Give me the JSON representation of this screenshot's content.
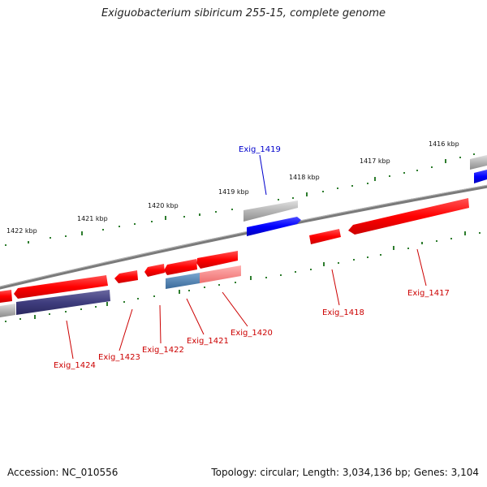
{
  "title": "Exiguobacterium sibiricum 255-15, complete genome",
  "accession": "Accession: NC_010556",
  "topology": "Topology: circular; Length: 3,034,136 bp; Genes: 3,104",
  "colors": {
    "backbone": "#808080",
    "forward_gene": "#ff0000",
    "reverse_gene": "#0000ff",
    "rna_gene": "#b0b0b0",
    "reverse_tick": "#3a3a80",
    "tick": "#2e7d2e",
    "label_forward": "#cc0000",
    "label_reverse": "#0000cc"
  },
  "kbp_labels": [
    "1416 kbp",
    "1417 kbp",
    "1418 kbp",
    "1419 kbp",
    "1420 kbp",
    "1421 kbp",
    "1422 kbp"
  ],
  "genes": [
    {
      "id": "Exig_1417",
      "strand": "forward"
    },
    {
      "id": "Exig_1418",
      "strand": "forward"
    },
    {
      "id": "Exig_1419",
      "strand": "reverse"
    },
    {
      "id": "Exig_1420",
      "strand": "forward"
    },
    {
      "id": "Exig_1421",
      "strand": "forward"
    },
    {
      "id": "Exig_1422",
      "strand": "forward"
    },
    {
      "id": "Exig_1423",
      "strand": "forward"
    },
    {
      "id": "Exig_1424",
      "strand": "forward"
    }
  ]
}
